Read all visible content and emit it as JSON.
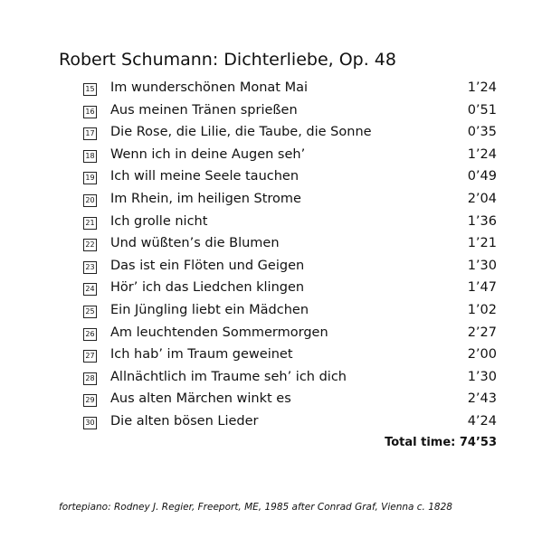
{
  "header": {
    "title": "Robert Schumann: Dichterliebe, Op. 48"
  },
  "tracks": [
    {
      "number": "15",
      "title": "Im wunderschönen Monat Mai",
      "duration": "1’24"
    },
    {
      "number": "16",
      "title": "Aus meinen Tränen sprießen",
      "duration": "0’51"
    },
    {
      "number": "17",
      "title": "Die Rose, die Lilie, die Taube, die Sonne",
      "duration": "0’35"
    },
    {
      "number": "18",
      "title": "Wenn ich in deine Augen seh’",
      "duration": "1’24"
    },
    {
      "number": "19",
      "title": "Ich will meine Seele tauchen",
      "duration": "0’49"
    },
    {
      "number": "20",
      "title": "Im Rhein, im heiligen Strome",
      "duration": "2’04"
    },
    {
      "number": "21",
      "title": "Ich grolle nicht",
      "duration": "1’36"
    },
    {
      "number": "22",
      "title": "Und wüßten’s die Blumen",
      "duration": "1’21"
    },
    {
      "number": "23",
      "title": "Das ist ein Flöten und Geigen",
      "duration": "1’30"
    },
    {
      "number": "24",
      "title": "Hör’ ich das Liedchen klingen",
      "duration": "1’47"
    },
    {
      "number": "25",
      "title": "Ein Jüngling liebt ein Mädchen",
      "duration": "1’02"
    },
    {
      "number": "26",
      "title": "Am leuchtenden Sommermorgen",
      "duration": "2’27"
    },
    {
      "number": "27",
      "title": "Ich hab’ im Traum geweinet",
      "duration": "2’00"
    },
    {
      "number": "28",
      "title": "Allnächtlich im Traume seh’ ich dich",
      "duration": "1’30"
    },
    {
      "number": "29",
      "title": "Aus alten Märchen winkt es",
      "duration": "2’43"
    },
    {
      "number": "30",
      "title": "Die alten bösen Lieder",
      "duration": "4’24"
    }
  ],
  "total": "Total time: 74’53",
  "footer": "fortepiano: Rodney J. Regier, Freeport, ME, 1985 after Conrad Graf, Vienna c. 1828"
}
